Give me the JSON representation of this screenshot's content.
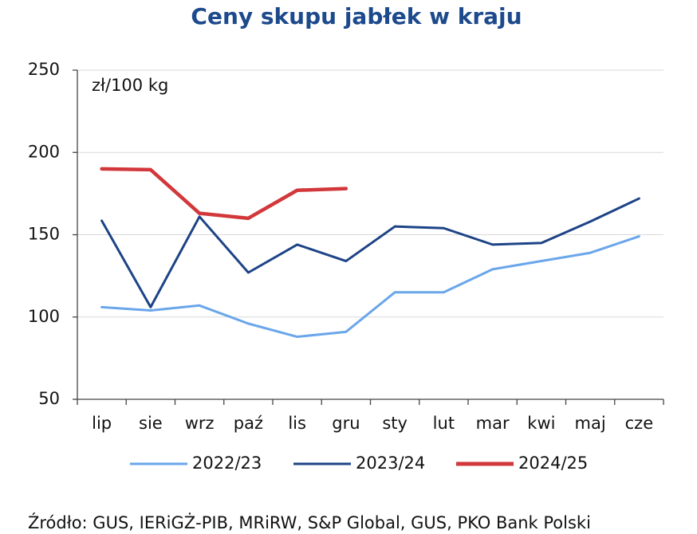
{
  "chart_data": {
    "type": "line",
    "title": "Ceny skupu jabłek w kraju",
    "annotation": "zł/100 kg",
    "source": "Źródło: GUS, IERiGŻ-PIB, MRiRW, S&P Global, GUS, PKO Bank Polski",
    "categories": [
      "lip",
      "sie",
      "wrz",
      "paź",
      "lis",
      "gru",
      "sty",
      "lut",
      "mar",
      "kwi",
      "maj",
      "cze"
    ],
    "series": [
      {
        "name": "2022/23",
        "color": "#6aa6ea",
        "values": [
          106,
          104,
          107,
          96,
          88,
          91,
          115,
          115,
          129,
          134,
          139,
          149
        ]
      },
      {
        "name": "2023/24",
        "color": "#1d4386",
        "values": [
          158.5,
          106,
          161,
          127,
          144,
          134,
          155,
          154,
          144,
          145,
          158,
          172
        ]
      },
      {
        "name": "2024/25",
        "color": "#d2383b",
        "values": [
          190,
          189.5,
          163,
          160,
          177,
          178,
          null,
          null,
          null,
          null,
          null,
          null
        ]
      }
    ],
    "ylim": [
      50,
      250
    ],
    "yticks": [
      50,
      100,
      150,
      200,
      250
    ],
    "grid": true,
    "legend": "bottom"
  }
}
